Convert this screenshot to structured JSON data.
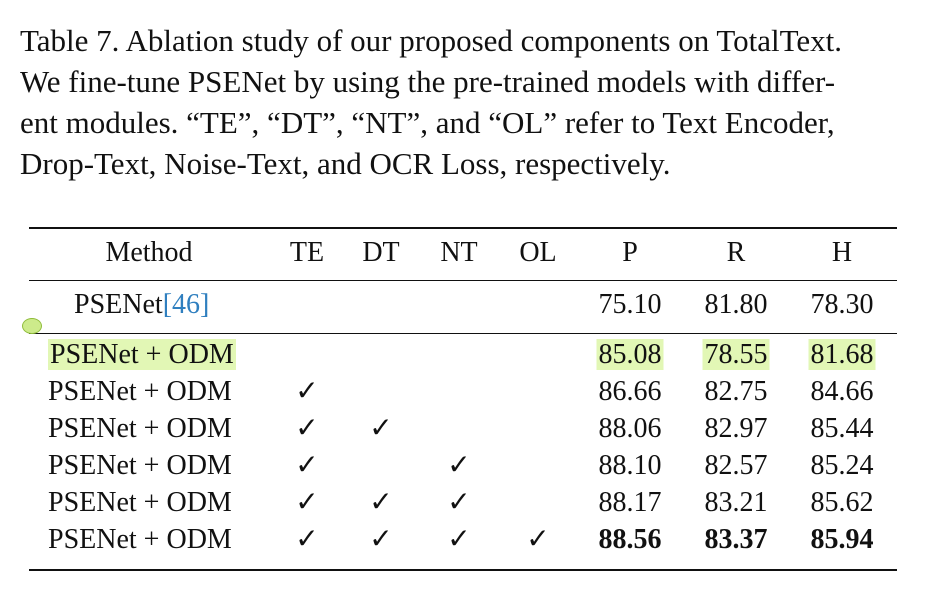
{
  "caption": {
    "lines": [
      "Table 7. Ablation study of our proposed components on TotalText.",
      "We fine-tune PSENet by using the pre-trained models with differ-",
      "ent modules. “TE”, “DT”, “NT”, and “OL” refer to Text Encoder,",
      "Drop-Text, Noise-Text, and OCR Loss, respectively."
    ]
  },
  "table": {
    "headers": [
      "Method",
      "TE",
      "DT",
      "NT",
      "OL",
      "P",
      "R",
      "H"
    ],
    "baseline": {
      "method": "PSENet",
      "citation": "[46]",
      "p": "75.10",
      "r": "81.80",
      "h": "78.30"
    },
    "rows": [
      {
        "method": "PSENet + ODM",
        "te": "",
        "dt": "",
        "nt": "",
        "ol": "",
        "p": "85.08",
        "r": "78.55",
        "h": "81.68",
        "highlight": true,
        "bold": false
      },
      {
        "method": "PSENet + ODM",
        "te": "✓",
        "dt": "",
        "nt": "",
        "ol": "",
        "p": "86.66",
        "r": "82.75",
        "h": "84.66",
        "highlight": false,
        "bold": false
      },
      {
        "method": "PSENet + ODM",
        "te": "✓",
        "dt": "✓",
        "nt": "",
        "ol": "",
        "p": "88.06",
        "r": "82.97",
        "h": "85.44",
        "highlight": false,
        "bold": false
      },
      {
        "method": "PSENet + ODM",
        "te": "✓",
        "dt": "",
        "nt": "✓",
        "ol": "",
        "p": "88.10",
        "r": "82.57",
        "h": "85.24",
        "highlight": false,
        "bold": false
      },
      {
        "method": "PSENet + ODM",
        "te": "✓",
        "dt": "✓",
        "nt": "✓",
        "ol": "",
        "p": "88.17",
        "r": "83.21",
        "h": "85.62",
        "highlight": false,
        "bold": false
      },
      {
        "method": "PSENet + ODM",
        "te": "✓",
        "dt": "✓",
        "nt": "✓",
        "ol": "✓",
        "p": "88.56",
        "r": "83.37",
        "h": "85.94",
        "highlight": false,
        "bold": true
      }
    ],
    "highlight_color": "#e2f7b5",
    "citation_color": "#2f7fbf"
  }
}
